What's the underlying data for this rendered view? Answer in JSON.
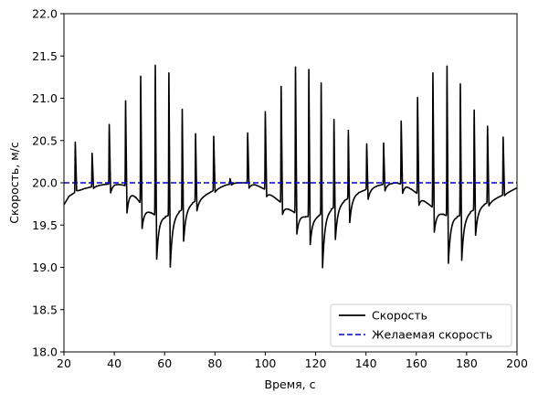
{
  "chart_data": {
    "type": "line",
    "title": "",
    "xlabel": "Время, с",
    "ylabel": "Скорость, м/с",
    "xlim": [
      20,
      200
    ],
    "ylim": [
      18.0,
      22.0
    ],
    "xticks": [
      "20",
      "40",
      "60",
      "80",
      "100",
      "120",
      "140",
      "160",
      "180",
      "200"
    ],
    "yticks": [
      "18.0",
      "18.5",
      "19.0",
      "19.5",
      "20.0",
      "20.5",
      "21.0",
      "21.5",
      "22.0"
    ],
    "grid": false,
    "legend_position": "bottom-right",
    "series": [
      {
        "name": "Скорость",
        "color": "#000000",
        "style": "solid",
        "baseline": [
          [
            20,
            19.74
          ],
          [
            22,
            19.84
          ],
          [
            24,
            19.88
          ],
          [
            28,
            19.93
          ],
          [
            32,
            19.96
          ],
          [
            36,
            19.98
          ],
          [
            40,
            19.99
          ],
          [
            44,
            19.97
          ],
          [
            48,
            19.85
          ],
          [
            52,
            19.7
          ],
          [
            56,
            19.62
          ],
          [
            60,
            19.6
          ],
          [
            64,
            19.63
          ],
          [
            68,
            19.7
          ],
          [
            72,
            19.78
          ],
          [
            76,
            19.85
          ],
          [
            80,
            19.92
          ],
          [
            84,
            19.97
          ],
          [
            88,
            20.0
          ],
          [
            92,
            20.0
          ],
          [
            96,
            19.98
          ],
          [
            100,
            19.92
          ],
          [
            104,
            19.82
          ],
          [
            108,
            19.72
          ],
          [
            112,
            19.64
          ],
          [
            116,
            19.6
          ],
          [
            120,
            19.6
          ],
          [
            124,
            19.65
          ],
          [
            128,
            19.72
          ],
          [
            132,
            19.8
          ],
          [
            136,
            19.87
          ],
          [
            140,
            19.92
          ],
          [
            144,
            19.96
          ],
          [
            148,
            19.99
          ],
          [
            152,
            20.0
          ],
          [
            156,
            19.97
          ],
          [
            160,
            19.88
          ],
          [
            164,
            19.77
          ],
          [
            168,
            19.67
          ],
          [
            172,
            19.61
          ],
          [
            176,
            19.6
          ],
          [
            180,
            19.63
          ],
          [
            184,
            19.7
          ],
          [
            188,
            19.76
          ],
          [
            192,
            19.82
          ],
          [
            196,
            19.88
          ],
          [
            200,
            19.94
          ]
        ],
        "spikes": [
          {
            "t": 24.5,
            "peak": 20.48,
            "dip": 19.9
          },
          {
            "t": 31.2,
            "peak": 20.35,
            "dip": 19.93
          },
          {
            "t": 38.0,
            "peak": 20.69,
            "dip": 19.88
          },
          {
            "t": 44.5,
            "peak": 20.97,
            "dip": 19.66
          },
          {
            "t": 50.5,
            "peak": 21.26,
            "dip": 19.48
          },
          {
            "t": 56.3,
            "peak": 21.39,
            "dip": 19.1
          },
          {
            "t": 61.7,
            "peak": 21.3,
            "dip": 19.0
          },
          {
            "t": 67.0,
            "peak": 20.87,
            "dip": 19.3
          },
          {
            "t": 72.3,
            "peak": 20.58,
            "dip": 19.66
          },
          {
            "t": 79.5,
            "peak": 20.55,
            "dip": 19.88
          },
          {
            "t": 86.0,
            "peak": 20.05,
            "dip": 19.97
          },
          {
            "t": 93.0,
            "peak": 20.59,
            "dip": 19.94
          },
          {
            "t": 100.0,
            "peak": 20.84,
            "dip": 19.85
          },
          {
            "t": 106.3,
            "peak": 21.14,
            "dip": 19.64
          },
          {
            "t": 112.0,
            "peak": 21.37,
            "dip": 19.4
          },
          {
            "t": 117.3,
            "peak": 21.34,
            "dip": 19.27
          },
          {
            "t": 122.2,
            "peak": 21.18,
            "dip": 18.99
          },
          {
            "t": 127.3,
            "peak": 20.75,
            "dip": 19.32
          },
          {
            "t": 133.0,
            "peak": 20.62,
            "dip": 19.52
          },
          {
            "t": 140.3,
            "peak": 20.46,
            "dip": 19.8
          },
          {
            "t": 147.0,
            "peak": 20.47,
            "dip": 19.9
          },
          {
            "t": 154.0,
            "peak": 20.73,
            "dip": 19.88
          },
          {
            "t": 160.5,
            "peak": 21.01,
            "dip": 19.75
          },
          {
            "t": 166.6,
            "peak": 21.3,
            "dip": 19.43
          },
          {
            "t": 172.2,
            "peak": 21.38,
            "dip": 19.05
          },
          {
            "t": 177.5,
            "peak": 21.17,
            "dip": 19.08
          },
          {
            "t": 183.0,
            "peak": 20.86,
            "dip": 19.37
          },
          {
            "t": 188.3,
            "peak": 20.67,
            "dip": 19.72
          },
          {
            "t": 194.5,
            "peak": 20.54,
            "dip": 19.84
          }
        ]
      },
      {
        "name": "Желаемая скорость",
        "color": "#0000cc",
        "style": "dashed",
        "points": [
          [
            20,
            20.0
          ],
          [
            200,
            20.0
          ]
        ]
      }
    ]
  }
}
